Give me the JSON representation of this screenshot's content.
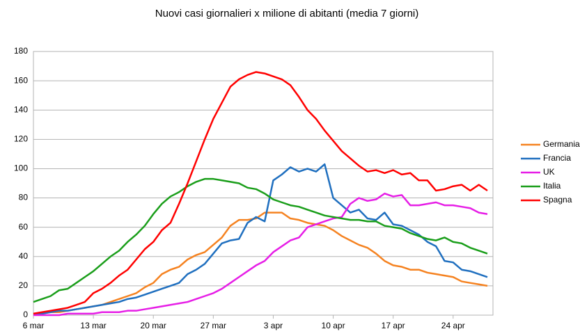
{
  "chart_data": {
    "type": "line",
    "title": "Nuovi casi giornalieri x milione di abitanti (media 7 giorni)",
    "categories": [
      "6 mar",
      null,
      null,
      null,
      null,
      null,
      null,
      "13 mar",
      null,
      null,
      null,
      null,
      null,
      null,
      "20 mar",
      null,
      null,
      null,
      null,
      null,
      null,
      "27 mar",
      null,
      null,
      null,
      null,
      null,
      null,
      "3 apr",
      null,
      null,
      null,
      null,
      null,
      null,
      "10 apr",
      null,
      null,
      null,
      null,
      null,
      null,
      "17 apr",
      null,
      null,
      null,
      null,
      null,
      null,
      "24 apr",
      null,
      null,
      null,
      null
    ],
    "series": [
      {
        "name": "Germania",
        "color": "#f58220",
        "values": [
          1,
          1,
          2,
          2,
          3,
          4,
          5,
          6,
          7,
          9,
          11,
          13,
          15,
          19,
          22,
          28,
          31,
          33,
          38,
          41,
          43,
          48,
          53,
          61,
          65,
          65,
          66,
          70,
          70,
          70,
          66,
          65,
          63,
          62,
          61,
          58,
          54,
          51,
          48,
          46,
          42,
          37,
          34,
          33,
          31,
          31,
          29,
          28,
          27,
          26,
          23,
          22,
          21,
          20
        ]
      },
      {
        "name": "Francia",
        "color": "#1f6fbf",
        "values": [
          1,
          1,
          2,
          3,
          3,
          4,
          5,
          6,
          7,
          8,
          9,
          11,
          12,
          14,
          16,
          18,
          20,
          22,
          28,
          31,
          35,
          42,
          49,
          51,
          52,
          63,
          67,
          64,
          92,
          96,
          101,
          98,
          100,
          98,
          103,
          80,
          75,
          70,
          72,
          66,
          65,
          70,
          62,
          61,
          58,
          55,
          50,
          47,
          37,
          36,
          31,
          30,
          28,
          26
        ]
      },
      {
        "name": "UK",
        "color": "#e61ee6",
        "values": [
          0,
          0,
          0,
          0,
          1,
          1,
          1,
          1,
          2,
          2,
          2,
          3,
          3,
          4,
          5,
          6,
          7,
          8,
          9,
          11,
          13,
          15,
          18,
          22,
          26,
          30,
          34,
          37,
          43,
          47,
          51,
          53,
          60,
          62,
          64,
          66,
          67,
          76,
          80,
          78,
          79,
          83,
          81,
          82,
          75,
          75,
          76,
          77,
          75,
          75,
          74,
          73,
          70,
          69
        ]
      },
      {
        "name": "Italia",
        "color": "#1a9e1a",
        "values": [
          9,
          11,
          13,
          17,
          18,
          22,
          26,
          30,
          35,
          40,
          44,
          50,
          55,
          61,
          69,
          76,
          81,
          84,
          88,
          91,
          93,
          93,
          92,
          91,
          90,
          87,
          86,
          83,
          79,
          77,
          75,
          74,
          72,
          70,
          68,
          67,
          66,
          65,
          65,
          64,
          64,
          61,
          60,
          59,
          56,
          54,
          52,
          51,
          53,
          50,
          49,
          46,
          44,
          42
        ]
      },
      {
        "name": "Spagna",
        "color": "#ff0000",
        "values": [
          1,
          2,
          3,
          4,
          5,
          7,
          9,
          15,
          18,
          22,
          27,
          31,
          38,
          45,
          50,
          58,
          63,
          76,
          90,
          105,
          120,
          134,
          145,
          156,
          161,
          164,
          166,
          165,
          163,
          161,
          157,
          149,
          140,
          134,
          126,
          119,
          112,
          107,
          102,
          98,
          99,
          97,
          99,
          96,
          97,
          92,
          92,
          85,
          86,
          88,
          89,
          85,
          89,
          85
        ]
      }
    ],
    "ylim": [
      0,
      180
    ],
    "yticks": [
      0,
      20,
      40,
      60,
      80,
      100,
      120,
      140,
      160,
      180
    ],
    "grid": true,
    "legend": "right"
  }
}
